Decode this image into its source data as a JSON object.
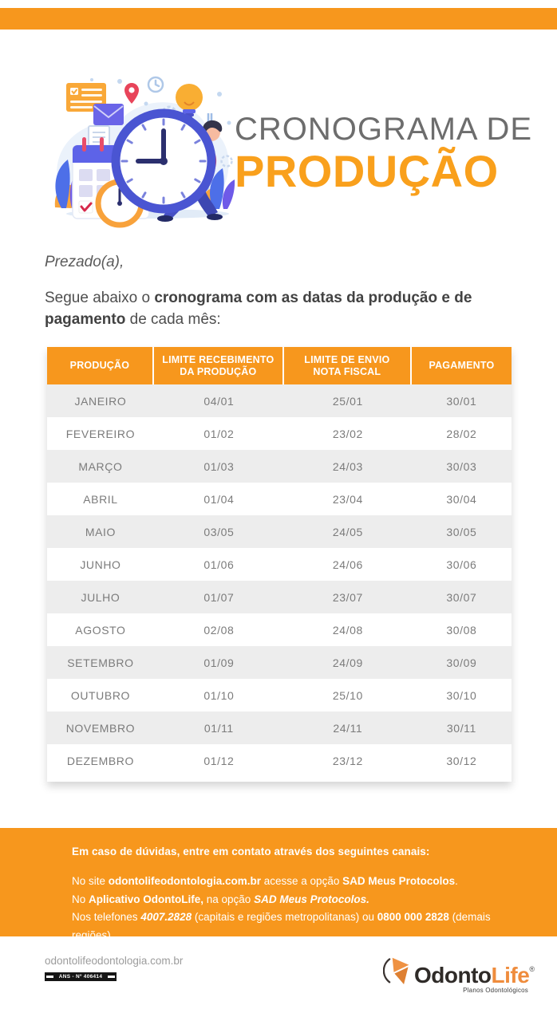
{
  "title": {
    "line1": "CRONOGRAMA DE",
    "line2": "PRODUÇÃO"
  },
  "intro": {
    "salutation": "Prezado(a),",
    "body_prefix": "Segue abaixo o ",
    "body_bold": "cronograma com as datas da produção e de pagamento",
    "body_suffix": " de cada mês:"
  },
  "table": {
    "headers": [
      "PRODUÇÃO",
      "LIMITE RECEBIMENTO\nDA PRODUÇÃO",
      "LIMITE DE ENVIO\nNOTA FISCAL",
      "PAGAMENTO"
    ],
    "rows": [
      {
        "month": "JANEIRO",
        "receipt_limit": "04/01",
        "invoice_limit": "25/01",
        "payment": "30/01"
      },
      {
        "month": "FEVEREIRO",
        "receipt_limit": "01/02",
        "invoice_limit": "23/02",
        "payment": "28/02"
      },
      {
        "month": "MARÇO",
        "receipt_limit": "01/03",
        "invoice_limit": "24/03",
        "payment": "30/03"
      },
      {
        "month": "ABRIL",
        "receipt_limit": "01/04",
        "invoice_limit": "23/04",
        "payment": "30/04"
      },
      {
        "month": "MAIO",
        "receipt_limit": "03/05",
        "invoice_limit": "24/05",
        "payment": "30/05"
      },
      {
        "month": "JUNHO",
        "receipt_limit": "01/06",
        "invoice_limit": "24/06",
        "payment": "30/06"
      },
      {
        "month": "JULHO",
        "receipt_limit": "01/07",
        "invoice_limit": "23/07",
        "payment": "30/07"
      },
      {
        "month": "AGOSTO",
        "receipt_limit": "02/08",
        "invoice_limit": "24/08",
        "payment": "30/08"
      },
      {
        "month": "SETEMBRO",
        "receipt_limit": "01/09",
        "invoice_limit": "24/09",
        "payment": "30/09"
      },
      {
        "month": "OUTUBRO",
        "receipt_limit": "01/10",
        "invoice_limit": "25/10",
        "payment": "30/10"
      },
      {
        "month": "NOVEMBRO",
        "receipt_limit": "01/11",
        "invoice_limit": "24/11",
        "payment": "30/11"
      },
      {
        "month": "DEZEMBRO",
        "receipt_limit": "01/12",
        "invoice_limit": "23/12",
        "payment": "30/12"
      }
    ]
  },
  "contact": {
    "heading": "Em caso de dúvidas, entre em contato através dos seguintes canais:",
    "lines": [
      [
        {
          "t": "No site ",
          "s": "n"
        },
        {
          "t": "odontolifeodontologia.com.br",
          "s": "b"
        },
        {
          "t": " acesse a opção ",
          "s": "n"
        },
        {
          "t": "SAD Meus Protocolos",
          "s": "b"
        },
        {
          "t": ".",
          "s": "n"
        }
      ],
      [
        {
          "t": "No ",
          "s": "n"
        },
        {
          "t": "Aplicativo OdontoLife,",
          "s": "b"
        },
        {
          "t": " na opção ",
          "s": "n"
        },
        {
          "t": "SAD Meus Protocolos.",
          "s": "bi"
        }
      ],
      [
        {
          "t": "Nos telefones ",
          "s": "n"
        },
        {
          "t": "4007.2828",
          "s": "bi"
        },
        {
          "t": " (capitais e regiões metropolitanas) ou ",
          "s": "n"
        },
        {
          "t": "0800 000 2828",
          "s": "b"
        },
        {
          "t": " (demais regiões).",
          "s": "n"
        }
      ]
    ]
  },
  "footer": {
    "website": "odontolifeodontologia.com.br",
    "ans_label": "ANS - Nº 406414",
    "logo": {
      "name_dark": "Odonto",
      "name_orange": "Life",
      "registered": "®",
      "tagline": "Planos Odontológicos"
    }
  },
  "colors": {
    "brand_orange": "#F7971D",
    "title_orange": "#F9A01C",
    "row_stripe": "#EDEDED",
    "cell_text": "#7B7B7B",
    "title_gray": "#6D6D6D"
  }
}
